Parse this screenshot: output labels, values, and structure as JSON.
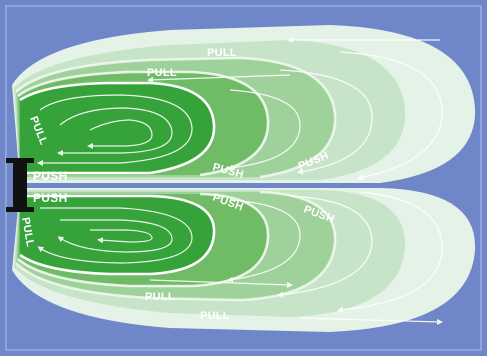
{
  "labels": {
    "pull": "PULL",
    "push": "PUSH"
  },
  "colors": {
    "background_blue": "#6f86c9",
    "ring_outer": "#e4f2e7",
    "ring_2": "#c8e4c8",
    "ring_3": "#9fd19a",
    "ring_4": "#6fbb66",
    "ring_core": "#35a23a",
    "flow_lines": "#ffffff",
    "source_bar": "#111111"
  }
}
